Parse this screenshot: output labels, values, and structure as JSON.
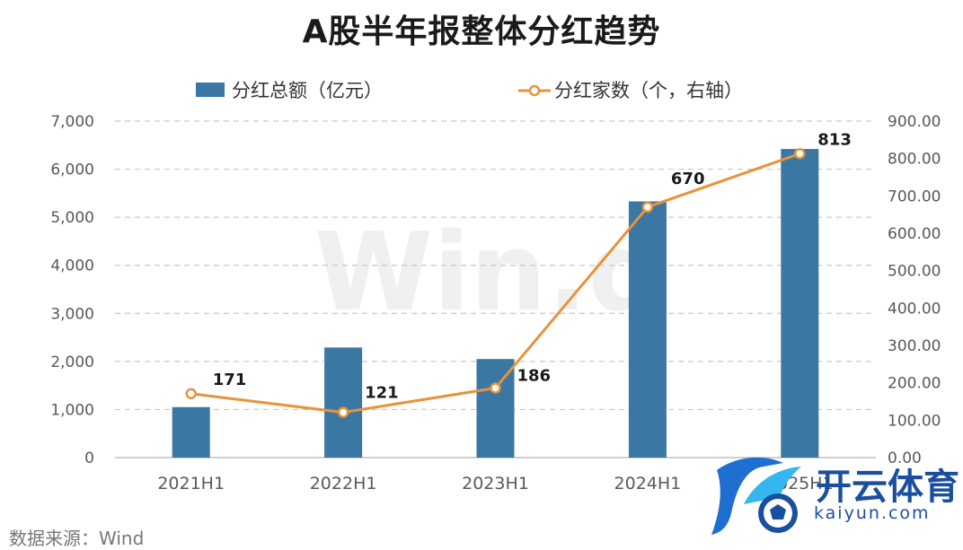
{
  "title": "A股半年报整体分红趋势",
  "source_note": "数据来源：Wind",
  "watermark": "Win.d",
  "logo": {
    "text": "开云体育",
    "sub": "kaiyun.com"
  },
  "colors": {
    "bar": "#3a77a3",
    "line": "#e8933a",
    "grid": "#c8c8c8",
    "axis_text": "#595959"
  },
  "chart_data": {
    "type": "bar",
    "title": "A股半年报整体分红趋势",
    "categories": [
      "2021H1",
      "2022H1",
      "2023H1",
      "2024H1",
      "2025H1"
    ],
    "series": [
      {
        "name": "分红总额（亿元）",
        "type": "bar",
        "axis": "left",
        "values": [
          1050,
          2290,
          2050,
          5330,
          6420
        ]
      },
      {
        "name": "分红家数（个，右轴）",
        "type": "line",
        "axis": "right",
        "values": [
          171,
          121,
          186,
          670,
          813
        ],
        "labels": [
          "171",
          "121",
          "186",
          "670",
          "813"
        ]
      }
    ],
    "y_left": {
      "min": 0,
      "max": 7000,
      "ticks": [
        "0",
        "1,000",
        "2,000",
        "3,000",
        "4,000",
        "5,000",
        "6,000",
        "7,000"
      ]
    },
    "y_right": {
      "min": 0,
      "max": 900,
      "ticks": [
        "0.00",
        "100.00",
        "200.00",
        "300.00",
        "400.00",
        "500.00",
        "600.00",
        "700.00",
        "800.00",
        "900.00"
      ]
    },
    "grid": true,
    "legend": "top-center"
  }
}
